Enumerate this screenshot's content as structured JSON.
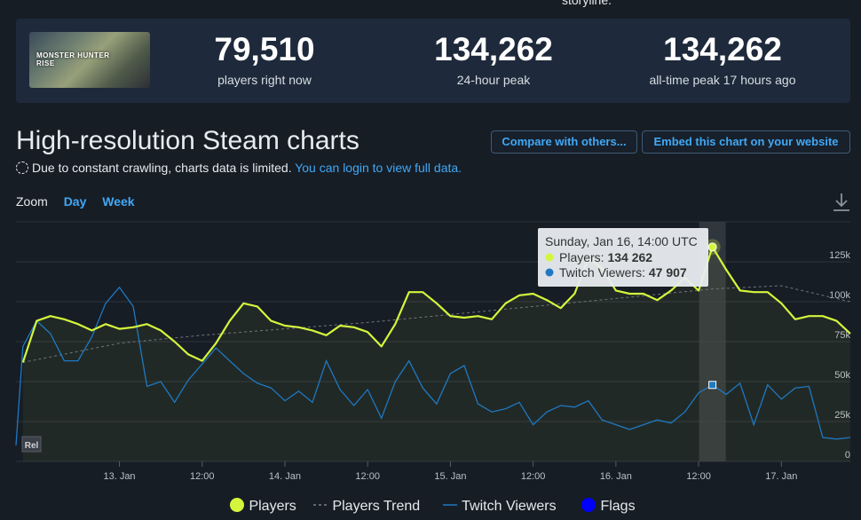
{
  "header": {
    "storyline_fragment": "storyline."
  },
  "game": {
    "logo_text": "MONSTER HUNTER RISE"
  },
  "stats": [
    {
      "value": "79,510",
      "label": "players right now"
    },
    {
      "value": "134,262",
      "label": "24-hour peak"
    },
    {
      "value": "134,262",
      "label": "all-time peak 17 hours ago"
    }
  ],
  "charts_section": {
    "title": "High-resolution Steam charts",
    "compare_button": "Compare with others...",
    "embed_button": "Embed this chart on your website",
    "notice_text": "Due to constant crawling, charts data is limited.",
    "notice_link": "You can login to view full data.",
    "zoom_label": "Zoom",
    "zoom_day": "Day",
    "zoom_week": "Week"
  },
  "colors": {
    "players": "#d4f53c",
    "twitch": "#1f78c1",
    "flags": "#0000ff",
    "link": "#40a8f5"
  },
  "chart_data": {
    "type": "line",
    "x_labels": [
      "13. Jan",
      "12:00",
      "14. Jan",
      "12:00",
      "15. Jan",
      "12:00",
      "16. Jan",
      "12:00",
      "17. Jan"
    ],
    "y_ticks": [
      "0",
      "25k",
      "50k",
      "75k",
      "100k",
      "125k"
    ],
    "ylim": [
      0,
      150000
    ],
    "x_range_hours": [
      -15,
      88
    ],
    "legend": [
      "Players",
      "Players Trend",
      "Twitch Viewers",
      "Flags"
    ],
    "rel_label": "Rel",
    "tooltip": {
      "title": "Sunday, Jan 16, 14:00 UTC",
      "players_label": "Players: ",
      "players_value": "134 262",
      "twitch_label": "Twitch Viewers: ",
      "twitch_value": "47 907",
      "hour": 86
    },
    "series": [
      {
        "name": "Players",
        "points": [
          [
            -14,
            62000
          ],
          [
            -12,
            88000
          ],
          [
            -10,
            91000
          ],
          [
            -8,
            89000
          ],
          [
            -6,
            86000
          ],
          [
            -4,
            82000
          ],
          [
            -2,
            86000
          ],
          [
            0,
            83000
          ],
          [
            2,
            84000
          ],
          [
            4,
            86000
          ],
          [
            6,
            82000
          ],
          [
            8,
            75000
          ],
          [
            10,
            67000
          ],
          [
            12,
            63000
          ],
          [
            14,
            74000
          ],
          [
            16,
            88000
          ],
          [
            18,
            99000
          ],
          [
            20,
            97000
          ],
          [
            22,
            88000
          ],
          [
            24,
            85000
          ],
          [
            26,
            84000
          ],
          [
            28,
            82000
          ],
          [
            30,
            79000
          ],
          [
            32,
            85000
          ],
          [
            34,
            84000
          ],
          [
            36,
            81000
          ],
          [
            38,
            72000
          ],
          [
            40,
            86000
          ],
          [
            42,
            106000
          ],
          [
            44,
            106000
          ],
          [
            46,
            99000
          ],
          [
            48,
            91000
          ],
          [
            50,
            90000
          ],
          [
            52,
            91000
          ],
          [
            54,
            89000
          ],
          [
            56,
            99000
          ],
          [
            58,
            104000
          ],
          [
            60,
            105000
          ],
          [
            62,
            101000
          ],
          [
            64,
            96000
          ],
          [
            66,
            105000
          ],
          [
            68,
            127000
          ],
          [
            70,
            121000
          ],
          [
            72,
            107000
          ],
          [
            74,
            105000
          ],
          [
            76,
            105000
          ],
          [
            78,
            101000
          ],
          [
            80,
            107000
          ],
          [
            82,
            115000
          ],
          [
            84,
            107000
          ],
          [
            86,
            134262
          ],
          [
            88,
            120000
          ],
          [
            90,
            107000
          ],
          [
            92,
            106000
          ],
          [
            94,
            106000
          ],
          [
            96,
            99000
          ],
          [
            98,
            89000
          ],
          [
            100,
            91000
          ],
          [
            102,
            91000
          ],
          [
            104,
            88000
          ],
          [
            106,
            80000
          ]
        ]
      },
      {
        "name": "Players Trend",
        "points": [
          [
            -14,
            62000
          ],
          [
            0,
            74000
          ],
          [
            12,
            79000
          ],
          [
            24,
            83000
          ],
          [
            36,
            87000
          ],
          [
            48,
            92000
          ],
          [
            60,
            97000
          ],
          [
            72,
            102000
          ],
          [
            86,
            108000
          ],
          [
            96,
            110000
          ],
          [
            106,
            100000
          ]
        ]
      },
      {
        "name": "Twitch Viewers",
        "points": [
          [
            -15,
            10000
          ],
          [
            -14,
            72000
          ],
          [
            -12,
            88000
          ],
          [
            -10,
            80000
          ],
          [
            -8,
            63000
          ],
          [
            -6,
            63000
          ],
          [
            -4,
            78000
          ],
          [
            -2,
            99000
          ],
          [
            0,
            109000
          ],
          [
            2,
            97000
          ],
          [
            4,
            47000
          ],
          [
            6,
            50000
          ],
          [
            8,
            37000
          ],
          [
            10,
            51000
          ],
          [
            12,
            61000
          ],
          [
            14,
            71000
          ],
          [
            16,
            63000
          ],
          [
            18,
            55000
          ],
          [
            20,
            49000
          ],
          [
            22,
            46000
          ],
          [
            24,
            38000
          ],
          [
            26,
            44000
          ],
          [
            28,
            37000
          ],
          [
            30,
            63000
          ],
          [
            32,
            45000
          ],
          [
            34,
            35000
          ],
          [
            36,
            45000
          ],
          [
            38,
            27000
          ],
          [
            40,
            50000
          ],
          [
            42,
            63000
          ],
          [
            44,
            46000
          ],
          [
            46,
            36000
          ],
          [
            48,
            55000
          ],
          [
            50,
            60000
          ],
          [
            52,
            36000
          ],
          [
            54,
            31000
          ],
          [
            56,
            33000
          ],
          [
            58,
            37000
          ],
          [
            60,
            23000
          ],
          [
            62,
            31000
          ],
          [
            64,
            35000
          ],
          [
            66,
            34000
          ],
          [
            68,
            38000
          ],
          [
            70,
            26000
          ],
          [
            72,
            23000
          ],
          [
            74,
            20000
          ],
          [
            76,
            23000
          ],
          [
            78,
            26000
          ],
          [
            80,
            24000
          ],
          [
            82,
            31000
          ],
          [
            84,
            43000
          ],
          [
            86,
            47907
          ],
          [
            88,
            42000
          ],
          [
            90,
            49000
          ],
          [
            92,
            23000
          ],
          [
            94,
            48000
          ],
          [
            96,
            39000
          ],
          [
            98,
            46000
          ],
          [
            100,
            47000
          ],
          [
            102,
            15000
          ],
          [
            104,
            14000
          ],
          [
            106,
            15000
          ]
        ]
      }
    ]
  },
  "legend_text": {
    "players": "Players",
    "trend": "Players Trend",
    "twitch": "Twitch Viewers",
    "flags": "Flags"
  }
}
